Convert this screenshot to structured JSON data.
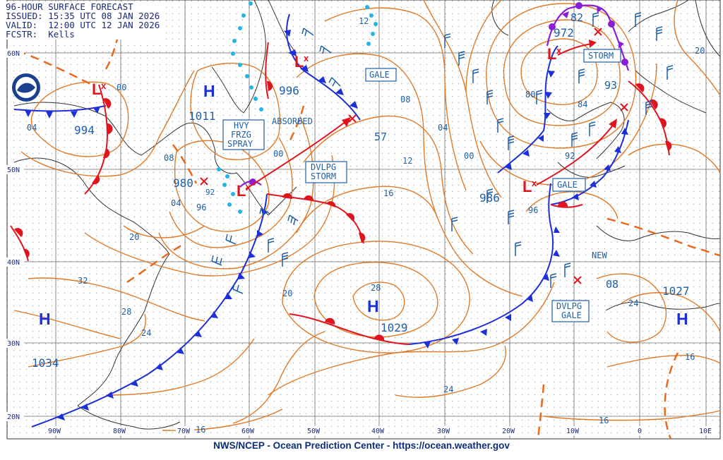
{
  "header": {
    "title": "96-HOUR SURFACE FORECAST",
    "issued": "ISSUED: 15:35 UTC 08 JAN 2026",
    "valid": "VALID:  12:00 UTC 12 JAN 2026",
    "forecaster": "FCSTR:  Kells"
  },
  "footer": "NWS/NCEP - Ocean Prediction Center - https://ocean.weather.gov",
  "colors": {
    "isobar": "#e07a28",
    "cold_front": "#1d2fd8",
    "warm_front": "#e0141e",
    "occluded": "#8a1ed8",
    "label": "#1f5fa8",
    "grid": "#555555"
  },
  "grid_labels": {
    "lat": [
      "60N",
      "50N",
      "40N",
      "30N",
      "20N"
    ],
    "lon": [
      "90W",
      "80W",
      "70W",
      "60W",
      "50W",
      "40W",
      "30W",
      "20W",
      "10W",
      "0",
      "10E"
    ]
  },
  "pressure_centers": [
    {
      "type": "H",
      "value": "1011"
    },
    {
      "type": "L",
      "value": "994"
    },
    {
      "type": "L",
      "value": "980"
    },
    {
      "type": "L",
      "value": "996"
    },
    {
      "type": "L",
      "value": "972"
    },
    {
      "type": "L",
      "value": "986"
    },
    {
      "type": "H",
      "value": "1029"
    },
    {
      "type": "H",
      "value": "1034"
    },
    {
      "type": "H",
      "value": "1027"
    }
  ],
  "isobar_labels": [
    "12",
    "00",
    "04",
    "08",
    "04",
    "00",
    "20",
    "32",
    "28",
    "24",
    "16",
    "57",
    "12",
    "16",
    "08",
    "04",
    "00",
    "28",
    "20",
    "24",
    "82",
    "80",
    "84",
    "92",
    "96",
    "93",
    "20",
    "16",
    "08",
    "24",
    "16",
    "92",
    "96"
  ],
  "warnings": [
    "GALE",
    "ABSORBED",
    "HVY FRZG SPRAY",
    "DVLPG STORM",
    "STORM",
    "GALE",
    "DVLPG GALE",
    "NEW"
  ]
}
